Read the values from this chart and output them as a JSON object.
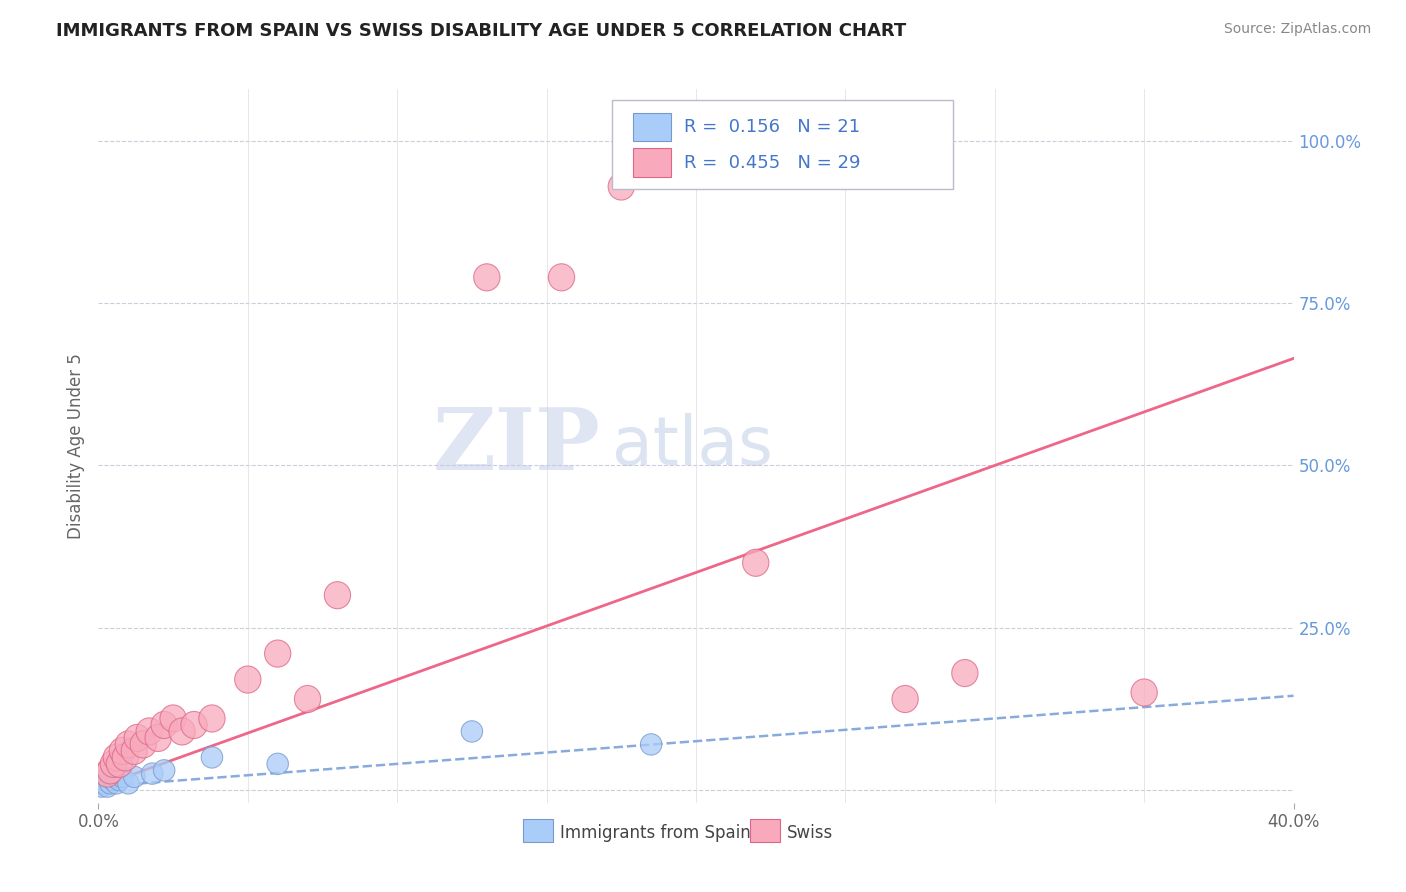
{
  "title": "IMMIGRANTS FROM SPAIN VS SWISS DISABILITY AGE UNDER 5 CORRELATION CHART",
  "source": "Source: ZipAtlas.com",
  "ylabel": "Disability Age Under 5",
  "xlim": [
    0.0,
    0.4
  ],
  "ylim": [
    -0.02,
    1.08
  ],
  "yticks_right": [
    0.0,
    0.25,
    0.5,
    0.75,
    1.0
  ],
  "ytick_right_labels": [
    "",
    "25.0%",
    "50.0%",
    "75.0%",
    "100.0%"
  ],
  "blue_r": "0.156",
  "blue_n": "21",
  "pink_r": "0.455",
  "pink_n": "29",
  "blue_color": "#aaccf8",
  "pink_color": "#f8aabc",
  "blue_edge_color": "#7799cc",
  "pink_edge_color": "#dd6688",
  "blue_line_color": "#88aadd",
  "pink_line_color": "#ee6688",
  "watermark_zip": "ZIP",
  "watermark_atlas": "atlas",
  "legend_label_blue": "Immigrants from Spain",
  "legend_label_pink": "Swiss",
  "blue_points_x": [
    0.001,
    0.002,
    0.002,
    0.003,
    0.003,
    0.004,
    0.004,
    0.005,
    0.005,
    0.006,
    0.006,
    0.007,
    0.008,
    0.01,
    0.012,
    0.018,
    0.022,
    0.038,
    0.06,
    0.125,
    0.185
  ],
  "blue_points_y": [
    0.005,
    0.01,
    0.015,
    0.005,
    0.02,
    0.01,
    0.025,
    0.015,
    0.03,
    0.01,
    0.02,
    0.015,
    0.02,
    0.01,
    0.02,
    0.025,
    0.03,
    0.05,
    0.04,
    0.09,
    0.07
  ],
  "pink_points_x": [
    0.003,
    0.004,
    0.005,
    0.006,
    0.007,
    0.008,
    0.009,
    0.01,
    0.012,
    0.013,
    0.015,
    0.017,
    0.02,
    0.022,
    0.025,
    0.028,
    0.032,
    0.038,
    0.05,
    0.06,
    0.07,
    0.08,
    0.13,
    0.155,
    0.175,
    0.22,
    0.35,
    0.27,
    0.29
  ],
  "pink_points_y": [
    0.025,
    0.03,
    0.04,
    0.05,
    0.04,
    0.06,
    0.05,
    0.07,
    0.06,
    0.08,
    0.07,
    0.09,
    0.08,
    0.1,
    0.11,
    0.09,
    0.1,
    0.11,
    0.17,
    0.21,
    0.14,
    0.3,
    0.79,
    0.79,
    0.93,
    0.35,
    0.15,
    0.14,
    0.18
  ],
  "pink_line_slope": 1.65,
  "pink_line_intercept": 0.005,
  "blue_line_slope": 0.35,
  "blue_line_intercept": 0.005,
  "grid_color": "#ccccdd",
  "background_color": "#ffffff"
}
